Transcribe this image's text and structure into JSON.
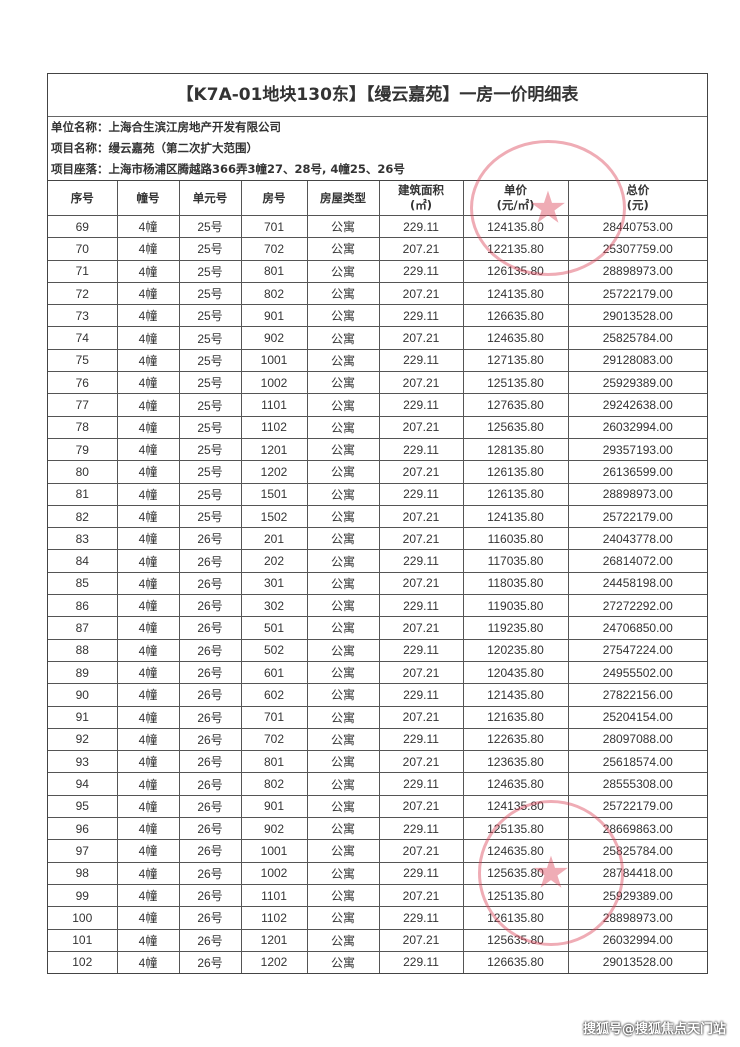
{
  "document": {
    "title": "【K7A-01地块130东】【缦云嘉苑】一房一价明细表",
    "company": "单位名称：上海合生滨江房地产开发有限公司",
    "project": "项目名称：缦云嘉苑（第二次扩大范围）",
    "location": "项目座落：上海市杨浦区腾越路366弄3幢27、28号, 4幢25、26号"
  },
  "table": {
    "headers": [
      "序号",
      "幢号",
      "单元号",
      "房号",
      "房屋类型",
      "建筑面积\n(㎡)",
      "单价\n(元/㎡)",
      "总价\n(元)"
    ],
    "rows": [
      [
        "69",
        "4幢",
        "25号",
        "701",
        "公寓",
        "229.11",
        "124135.80",
        "28440753.00"
      ],
      [
        "70",
        "4幢",
        "25号",
        "702",
        "公寓",
        "207.21",
        "122135.80",
        "25307759.00"
      ],
      [
        "71",
        "4幢",
        "25号",
        "801",
        "公寓",
        "229.11",
        "126135.80",
        "28898973.00"
      ],
      [
        "72",
        "4幢",
        "25号",
        "802",
        "公寓",
        "207.21",
        "124135.80",
        "25722179.00"
      ],
      [
        "73",
        "4幢",
        "25号",
        "901",
        "公寓",
        "229.11",
        "126635.80",
        "29013528.00"
      ],
      [
        "74",
        "4幢",
        "25号",
        "902",
        "公寓",
        "207.21",
        "124635.80",
        "25825784.00"
      ],
      [
        "75",
        "4幢",
        "25号",
        "1001",
        "公寓",
        "229.11",
        "127135.80",
        "29128083.00"
      ],
      [
        "76",
        "4幢",
        "25号",
        "1002",
        "公寓",
        "207.21",
        "125135.80",
        "25929389.00"
      ],
      [
        "77",
        "4幢",
        "25号",
        "1101",
        "公寓",
        "229.11",
        "127635.80",
        "29242638.00"
      ],
      [
        "78",
        "4幢",
        "25号",
        "1102",
        "公寓",
        "207.21",
        "125635.80",
        "26032994.00"
      ],
      [
        "79",
        "4幢",
        "25号",
        "1201",
        "公寓",
        "229.11",
        "128135.80",
        "29357193.00"
      ],
      [
        "80",
        "4幢",
        "25号",
        "1202",
        "公寓",
        "207.21",
        "126135.80",
        "26136599.00"
      ],
      [
        "81",
        "4幢",
        "25号",
        "1501",
        "公寓",
        "229.11",
        "126135.80",
        "28898973.00"
      ],
      [
        "82",
        "4幢",
        "25号",
        "1502",
        "公寓",
        "207.21",
        "124135.80",
        "25722179.00"
      ],
      [
        "83",
        "4幢",
        "26号",
        "201",
        "公寓",
        "207.21",
        "116035.80",
        "24043778.00"
      ],
      [
        "84",
        "4幢",
        "26号",
        "202",
        "公寓",
        "229.11",
        "117035.80",
        "26814072.00"
      ],
      [
        "85",
        "4幢",
        "26号",
        "301",
        "公寓",
        "207.21",
        "118035.80",
        "24458198.00"
      ],
      [
        "86",
        "4幢",
        "26号",
        "302",
        "公寓",
        "229.11",
        "119035.80",
        "27272292.00"
      ],
      [
        "87",
        "4幢",
        "26号",
        "501",
        "公寓",
        "207.21",
        "119235.80",
        "24706850.00"
      ],
      [
        "88",
        "4幢",
        "26号",
        "502",
        "公寓",
        "229.11",
        "120235.80",
        "27547224.00"
      ],
      [
        "89",
        "4幢",
        "26号",
        "601",
        "公寓",
        "207.21",
        "120435.80",
        "24955502.00"
      ],
      [
        "90",
        "4幢",
        "26号",
        "602",
        "公寓",
        "229.11",
        "121435.80",
        "27822156.00"
      ],
      [
        "91",
        "4幢",
        "26号",
        "701",
        "公寓",
        "207.21",
        "121635.80",
        "25204154.00"
      ],
      [
        "92",
        "4幢",
        "26号",
        "702",
        "公寓",
        "229.11",
        "122635.80",
        "28097088.00"
      ],
      [
        "93",
        "4幢",
        "26号",
        "801",
        "公寓",
        "207.21",
        "123635.80",
        "25618574.00"
      ],
      [
        "94",
        "4幢",
        "26号",
        "802",
        "公寓",
        "229.11",
        "124635.80",
        "28555308.00"
      ],
      [
        "95",
        "4幢",
        "26号",
        "901",
        "公寓",
        "207.21",
        "124135.80",
        "25722179.00"
      ],
      [
        "96",
        "4幢",
        "26号",
        "902",
        "公寓",
        "229.11",
        "125135.80",
        "28669863.00"
      ],
      [
        "97",
        "4幢",
        "26号",
        "1001",
        "公寓",
        "207.21",
        "124635.80",
        "25825784.00"
      ],
      [
        "98",
        "4幢",
        "26号",
        "1002",
        "公寓",
        "229.11",
        "125635.80",
        "28784418.00"
      ],
      [
        "99",
        "4幢",
        "26号",
        "1101",
        "公寓",
        "207.21",
        "125135.80",
        "25929389.00"
      ],
      [
        "100",
        "4幢",
        "26号",
        "1102",
        "公寓",
        "229.11",
        "126135.80",
        "28898973.00"
      ],
      [
        "101",
        "4幢",
        "26号",
        "1201",
        "公寓",
        "207.21",
        "125635.80",
        "26032994.00"
      ],
      [
        "102",
        "4幢",
        "26号",
        "1202",
        "公寓",
        "229.11",
        "126635.80",
        "29013528.00"
      ]
    ]
  },
  "stamp_color": "#dc465a",
  "watermark": "搜狐号@搜狐焦点天门站"
}
